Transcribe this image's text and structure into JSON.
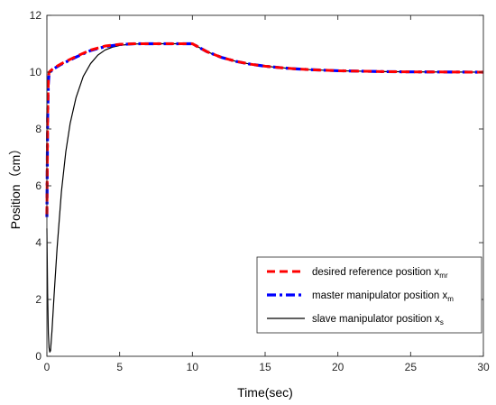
{
  "chart_data": {
    "type": "line",
    "title": "",
    "xlabel": "Time(sec)",
    "ylabel": "Position（cm）",
    "xlim": [
      0,
      30
    ],
    "ylim": [
      0,
      12
    ],
    "xticks": [
      0,
      5,
      10,
      15,
      20,
      25,
      30
    ],
    "yticks": [
      0,
      2,
      4,
      6,
      8,
      10,
      12
    ],
    "grid": false,
    "legend": {
      "position": "bottom-right",
      "entries": [
        {
          "text": "desired reference position x",
          "sub": "mr",
          "color": "#ff0000",
          "style": "dashed"
        },
        {
          "text": "master manipulator position x",
          "sub": "m",
          "color": "#0000ff",
          "style": "dash-dot"
        },
        {
          "text": "slave manipulator position x",
          "sub": "s",
          "color": "#000000",
          "style": "solid"
        }
      ]
    },
    "series": [
      {
        "name": "desired reference position xmr",
        "color": "#ff0000",
        "x": [
          0,
          0.05,
          0.1,
          0.15,
          0.25,
          0.5,
          1,
          2,
          3,
          4,
          5,
          6,
          7,
          8,
          9,
          10,
          11,
          12,
          13,
          14,
          15,
          16,
          17,
          18,
          19,
          20,
          21,
          22,
          23,
          24,
          25,
          26,
          27,
          28,
          29,
          30
        ],
        "y": [
          5,
          8.5,
          9.7,
          10,
          10.05,
          10.15,
          10.3,
          10.55,
          10.78,
          10.92,
          10.98,
          11,
          11,
          11,
          11,
          11,
          10.72,
          10.52,
          10.38,
          10.28,
          10.21,
          10.16,
          10.12,
          10.09,
          10.07,
          10.05,
          10.04,
          10.03,
          10.02,
          10.015,
          10.01,
          10.008,
          10.006,
          10.004,
          10.002,
          10
        ]
      },
      {
        "name": "master manipulator position xm",
        "color": "#0000ff",
        "x": [
          0,
          0.05,
          0.1,
          0.15,
          0.25,
          0.5,
          1,
          2,
          3,
          4,
          5,
          6,
          7,
          8,
          9,
          10,
          11,
          12,
          13,
          14,
          15,
          16,
          17,
          18,
          19,
          20,
          21,
          22,
          23,
          24,
          25,
          26,
          27,
          28,
          29,
          30
        ],
        "y": [
          4.9,
          8.4,
          9.6,
          9.95,
          10.02,
          10.13,
          10.28,
          10.53,
          10.76,
          10.9,
          10.97,
          11,
          11,
          11,
          11,
          11,
          10.72,
          10.52,
          10.38,
          10.28,
          10.21,
          10.16,
          10.12,
          10.09,
          10.07,
          10.05,
          10.04,
          10.03,
          10.02,
          10.015,
          10.01,
          10.008,
          10.006,
          10.004,
          10.002,
          10
        ]
      },
      {
        "name": "slave manipulator position xs",
        "color": "#000000",
        "x": [
          0,
          0.05,
          0.1,
          0.15,
          0.2,
          0.25,
          0.35,
          0.5,
          0.7,
          1,
          1.3,
          1.6,
          2,
          2.5,
          3,
          3.5,
          4,
          4.5,
          5,
          5.5,
          6,
          7,
          8,
          9,
          10,
          11,
          12,
          13,
          14,
          15,
          16,
          17,
          18,
          19,
          20,
          21,
          22,
          23,
          24,
          25,
          26,
          27,
          28,
          29,
          30
        ],
        "y": [
          4.5,
          2.2,
          0.8,
          0.3,
          0.15,
          0.2,
          0.9,
          2.2,
          3.8,
          5.8,
          7.2,
          8.2,
          9.1,
          9.85,
          10.3,
          10.6,
          10.78,
          10.88,
          10.94,
          10.97,
          10.99,
          11,
          11,
          11,
          11,
          10.72,
          10.52,
          10.38,
          10.28,
          10.21,
          10.16,
          10.12,
          10.09,
          10.07,
          10.05,
          10.04,
          10.03,
          10.02,
          10.015,
          10.01,
          10.008,
          10.006,
          10.004,
          10.002,
          10
        ]
      }
    ]
  }
}
